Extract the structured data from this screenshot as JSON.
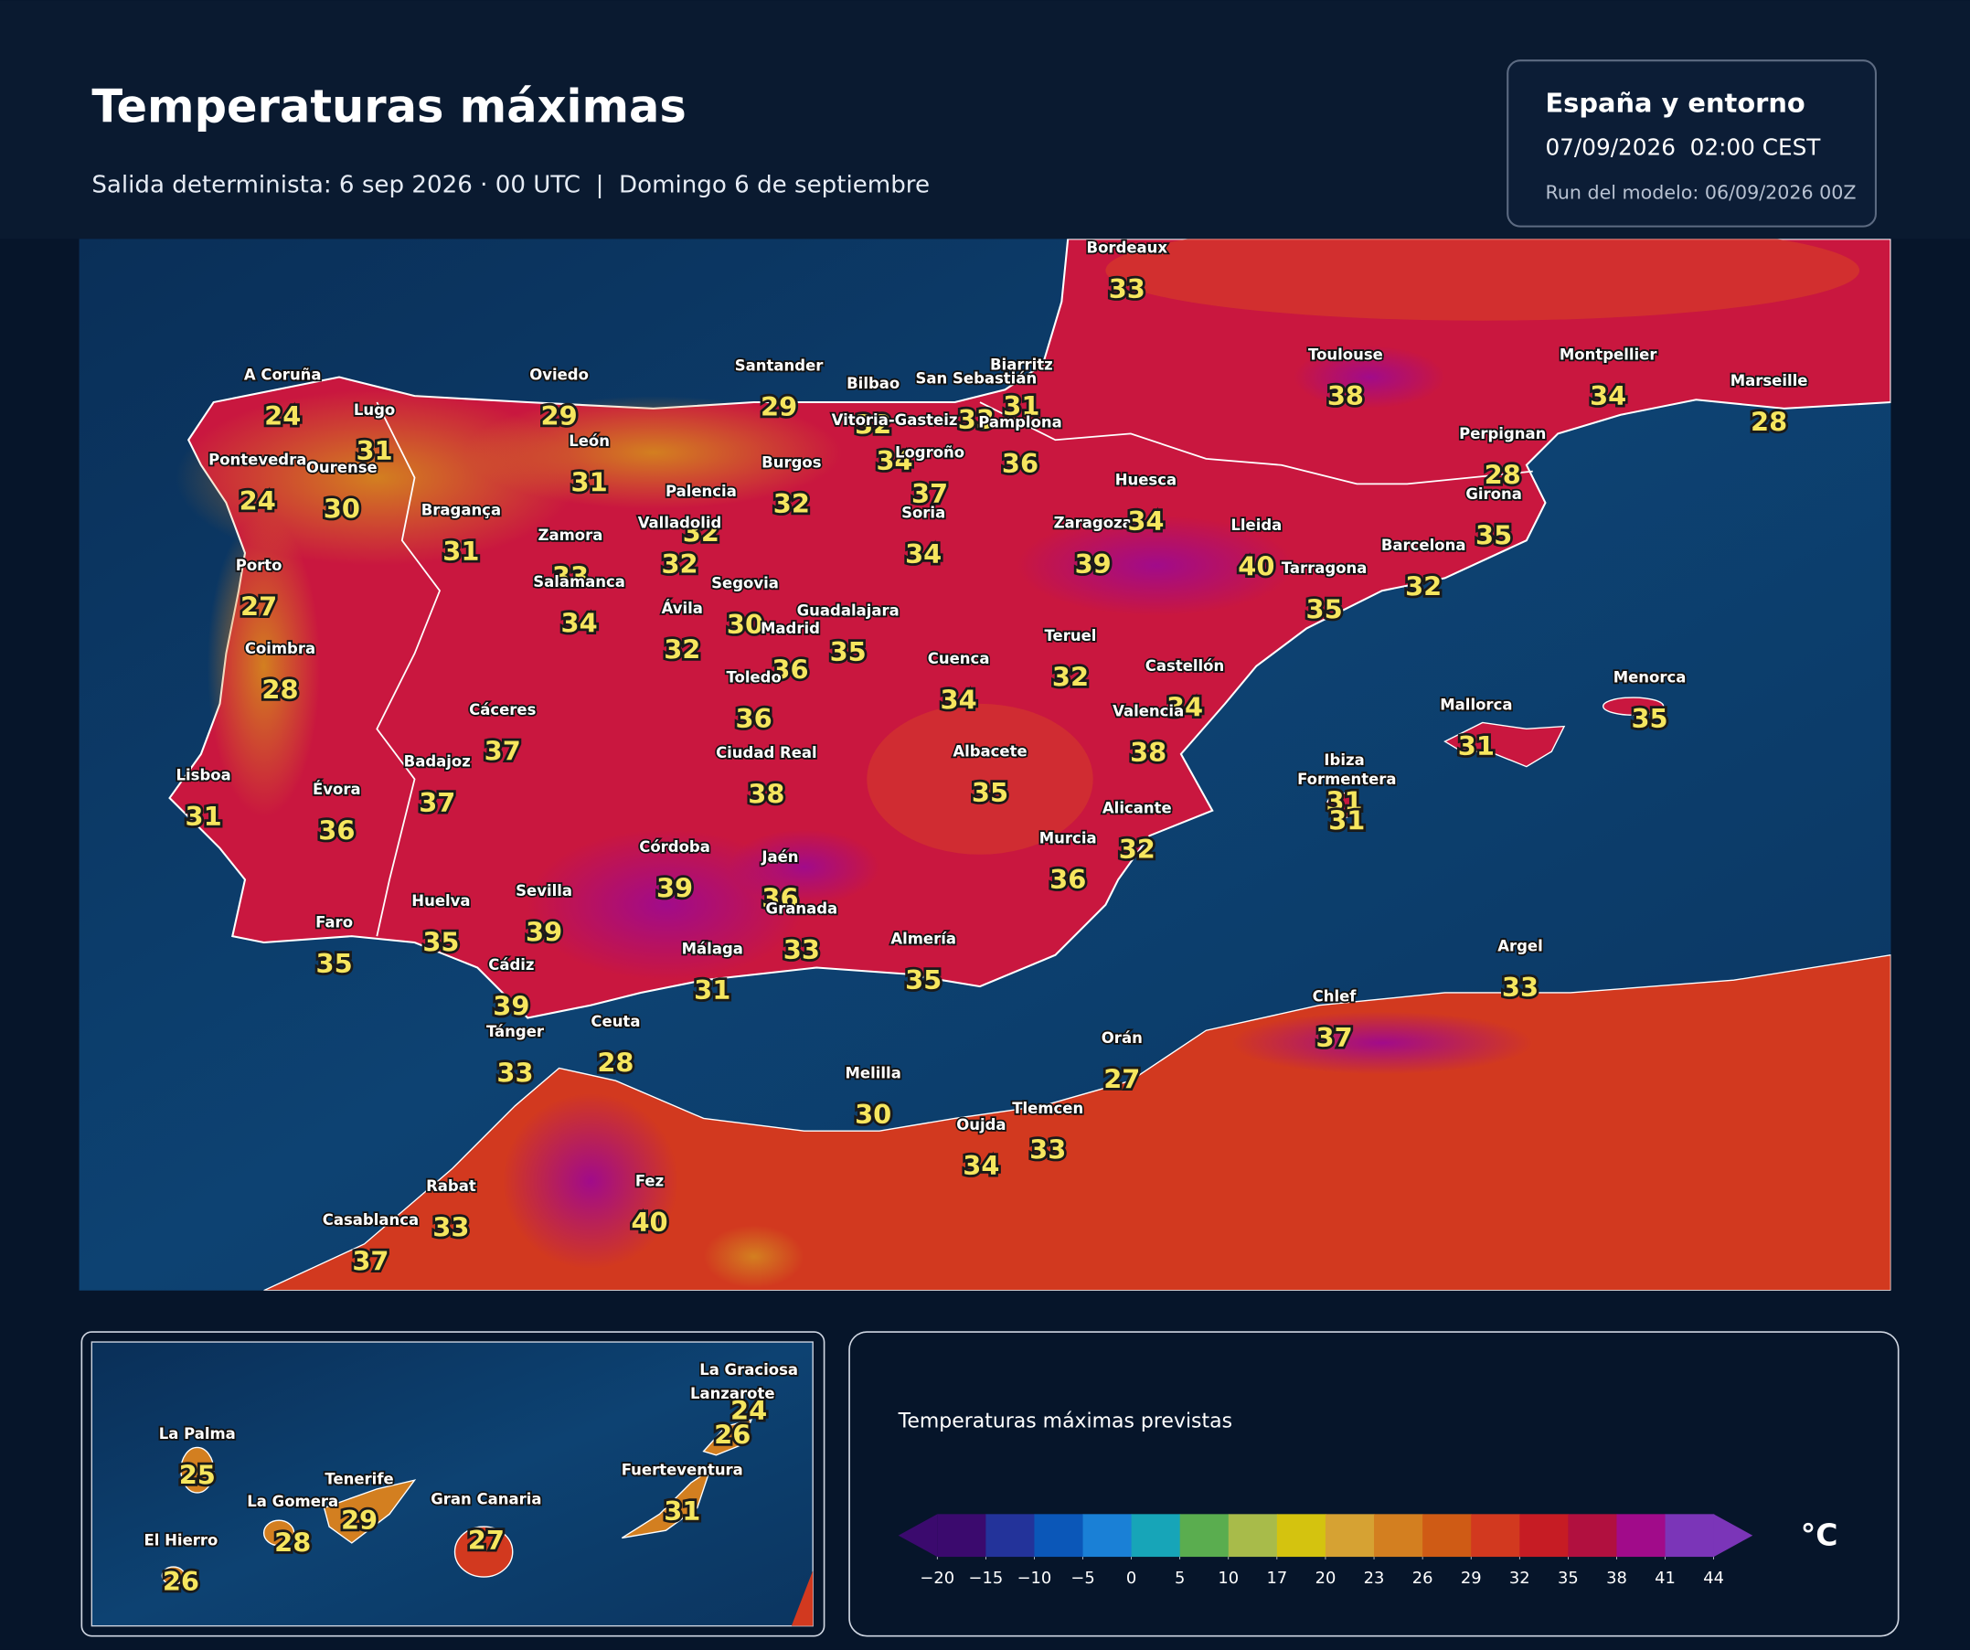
{
  "header": {
    "title": "Temperaturas máximas",
    "subtitle": "Salida determinista: 6 sep 2026 · 00 UTC  |  Domingo 6 de septiembre"
  },
  "info": {
    "region": "España y entorno",
    "valid": "07/09/2026  02:00 CEST",
    "run": "Run del modelo: 06/09/2026 00Z"
  },
  "map": {
    "cities": [
      {
        "name": "A Coruña",
        "value": 24
      },
      {
        "name": "Lugo",
        "value": 31
      },
      {
        "name": "Pontevedra",
        "value": 24
      },
      {
        "name": "Ourense",
        "value": 30
      },
      {
        "name": "Oviedo",
        "value": 29
      },
      {
        "name": "León",
        "value": 31
      },
      {
        "name": "Bragança",
        "value": 31
      },
      {
        "name": "Zamora",
        "value": 33
      },
      {
        "name": "Salamanca",
        "value": 34
      },
      {
        "name": "Porto",
        "value": 27
      },
      {
        "name": "Coimbra",
        "value": 28
      },
      {
        "name": "Santander",
        "value": 29
      },
      {
        "name": "Bilbao",
        "value": 32
      },
      {
        "name": "Vitoria-Gasteiz",
        "value": 34
      },
      {
        "name": "Logroño",
        "value": 37
      },
      {
        "name": "San Sebastián",
        "value": 33
      },
      {
        "name": "Biarritz",
        "value": 31
      },
      {
        "name": "Pamplona",
        "value": 36
      },
      {
        "name": "Burgos",
        "value": 32
      },
      {
        "name": "Palencia",
        "value": 32
      },
      {
        "name": "Valladolid",
        "value": 32
      },
      {
        "name": "Soria",
        "value": 34
      },
      {
        "name": "Segovia",
        "value": 30
      },
      {
        "name": "Ávila",
        "value": 32
      },
      {
        "name": "Madrid",
        "value": 36
      },
      {
        "name": "Guadalajara",
        "value": 35
      },
      {
        "name": "Toledo",
        "value": 36
      },
      {
        "name": "Cuenca",
        "value": 34
      },
      {
        "name": "Teruel",
        "value": 32
      },
      {
        "name": "Zaragoza",
        "value": 39
      },
      {
        "name": "Huesca",
        "value": 34
      },
      {
        "name": "Lleida",
        "value": 40
      },
      {
        "name": "Tarragona",
        "value": 35
      },
      {
        "name": "Barcelona",
        "value": 32
      },
      {
        "name": "Girona",
        "value": 35
      },
      {
        "name": "Perpignan",
        "value": 28
      },
      {
        "name": "Castellón",
        "value": 34
      },
      {
        "name": "Valencia",
        "value": 38
      },
      {
        "name": "Cáceres",
        "value": 37
      },
      {
        "name": "Badajoz",
        "value": 37
      },
      {
        "name": "Lisboa",
        "value": 31
      },
      {
        "name": "Évora",
        "value": 36
      },
      {
        "name": "Ciudad Real",
        "value": 38
      },
      {
        "name": "Albacete",
        "value": 35
      },
      {
        "name": "Alicante",
        "value": 32
      },
      {
        "name": "Murcia",
        "value": 36
      },
      {
        "name": "Córdoba",
        "value": 39
      },
      {
        "name": "Jaén",
        "value": 36
      },
      {
        "name": "Granada",
        "value": 33
      },
      {
        "name": "Sevilla",
        "value": 39
      },
      {
        "name": "Huelva",
        "value": 35
      },
      {
        "name": "Faro",
        "value": 35
      },
      {
        "name": "Cádiz",
        "value": 39
      },
      {
        "name": "Málaga",
        "value": 31
      },
      {
        "name": "Almería",
        "value": 35
      },
      {
        "name": "Ibiza",
        "value": 31
      },
      {
        "name": "Formentera",
        "value": 31
      },
      {
        "name": "Mallorca",
        "value": 31
      },
      {
        "name": "Menorca",
        "value": 35
      },
      {
        "name": "Bordeaux",
        "value": 33
      },
      {
        "name": "Toulouse",
        "value": 38
      },
      {
        "name": "Montpellier",
        "value": 34
      },
      {
        "name": "Marseille",
        "value": 28
      },
      {
        "name": "Tánger",
        "value": 33
      },
      {
        "name": "Ceuta",
        "value": 28
      },
      {
        "name": "Melilla",
        "value": 30
      },
      {
        "name": "Orán",
        "value": 27
      },
      {
        "name": "Oujda",
        "value": 34
      },
      {
        "name": "Tlemcen",
        "value": 33
      },
      {
        "name": "Chlef",
        "value": 37
      },
      {
        "name": "Argel",
        "value": 33
      },
      {
        "name": "Rabat",
        "value": 33
      },
      {
        "name": "Casablanca",
        "value": 37
      },
      {
        "name": "Fez",
        "value": 40
      }
    ]
  },
  "inset": {
    "cities": [
      {
        "name": "La Graciosa",
        "value": 24
      },
      {
        "name": "Lanzarote",
        "value": 26
      },
      {
        "name": "La Palma",
        "value": 25
      },
      {
        "name": "Tenerife",
        "value": 29
      },
      {
        "name": "La Gomera",
        "value": 28
      },
      {
        "name": "Gran Canaria",
        "value": 27
      },
      {
        "name": "Fuerteventura",
        "value": 31
      },
      {
        "name": "El Hierro",
        "value": 26
      }
    ]
  },
  "legend": {
    "title": "Temperaturas máximas previstas",
    "unit": "°C",
    "ticks": [
      {
        "value": -20,
        "label": "−20"
      },
      {
        "value": -15,
        "label": "−15"
      },
      {
        "value": -10,
        "label": "−10"
      },
      {
        "value": -5,
        "label": "−5"
      },
      0,
      5,
      10,
      17,
      20,
      23,
      26,
      29,
      32,
      35,
      38,
      41,
      44
    ],
    "colors": [
      "#3b0a6e",
      "#23339a",
      "#0b57b8",
      "#1a80d6",
      "#17a5b8",
      "#5aad4f",
      "#a8bb4a",
      "#d4c30f",
      "#d6a233",
      "#d37f20",
      "#cf5b15",
      "#d2391f",
      "#c61c24",
      "#b1103f",
      "#a10b8a",
      "#7b35b8"
    ]
  }
}
